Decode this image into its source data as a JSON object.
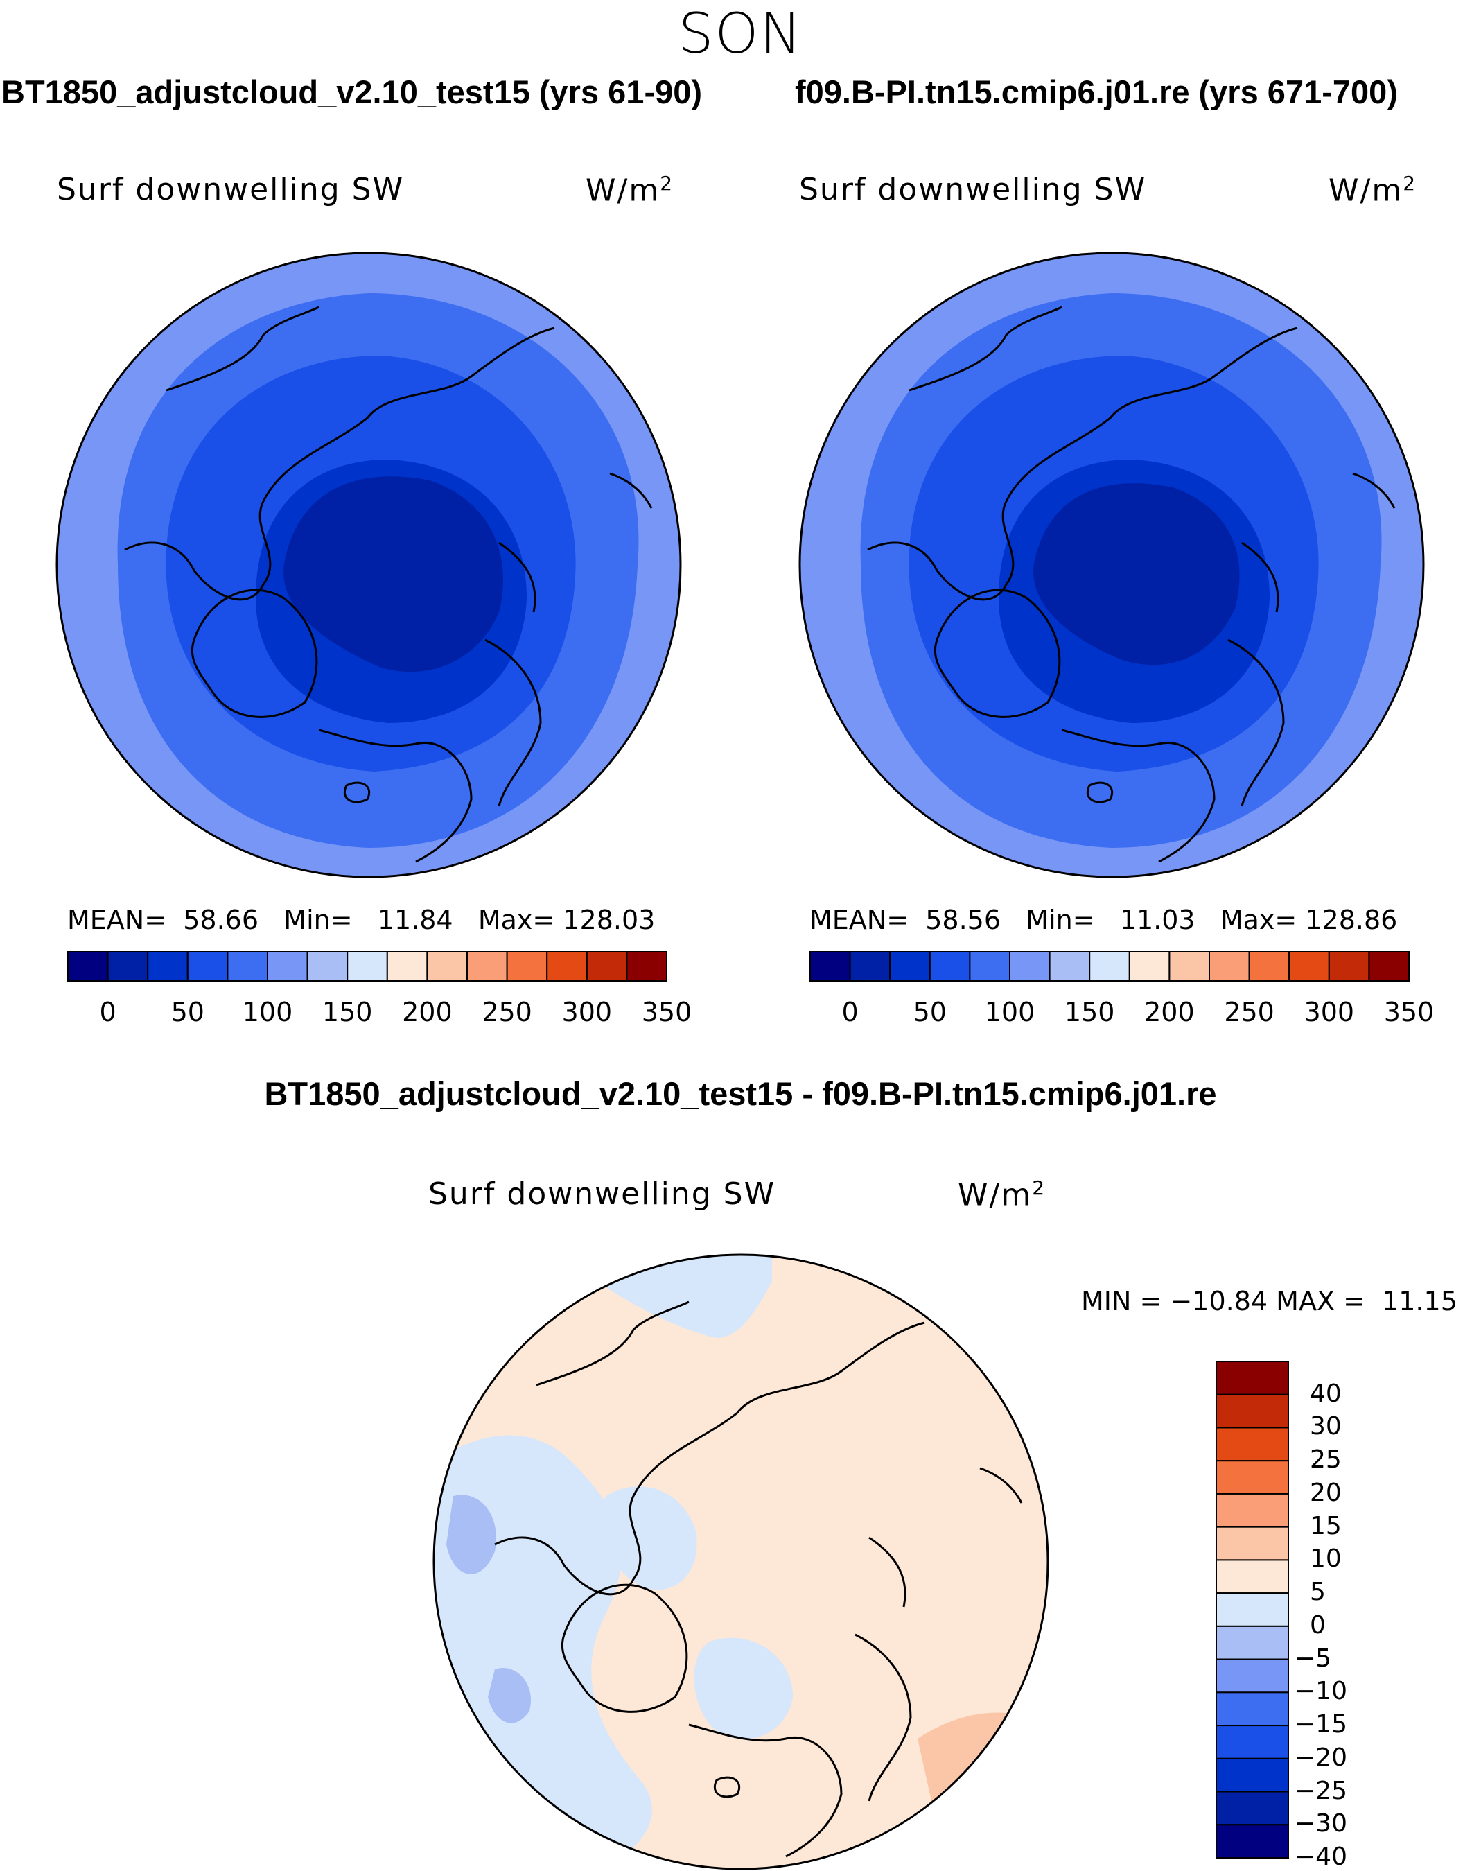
{
  "page_title": "SON",
  "colors": {
    "abs_scale": [
      "#000080",
      "#0021a6",
      "#0033c9",
      "#1a4fe8",
      "#3d6ef2",
      "#7896f5",
      "#a8bef5",
      "#d6e6fb",
      "#fde8d8",
      "#fbc6a8",
      "#f99e76",
      "#f3723e",
      "#e34a14",
      "#c32a07",
      "#8a0000"
    ],
    "diff_scale": [
      "#000080",
      "#0021a6",
      "#0033c9",
      "#1a4fe8",
      "#3d6ef2",
      "#7896f5",
      "#a8bef5",
      "#d6e6fb",
      "#fde8d8",
      "#fbc6a8",
      "#f99e76",
      "#f3723e",
      "#e34a14",
      "#c32a07",
      "#8a0000"
    ]
  },
  "panels": {
    "left": {
      "case_title": "BT1850_adjustcloud_v2.10_test15 (yrs 61-90)",
      "variable": "Surf downwelling SW",
      "units": "W/m",
      "units_exp": "2",
      "stats": {
        "mean_label": "MEAN=",
        "mean": "58.66",
        "min_label": "Min=",
        "min": "11.84",
        "max_label": "Max=",
        "max": "128.03"
      }
    },
    "right": {
      "case_title": "f09.B-PI.tn15.cmip6.j01.re (yrs 671-700)",
      "variable": "Surf downwelling SW",
      "units": "W/m",
      "units_exp": "2",
      "stats": {
        "mean_label": "MEAN=",
        "mean": "58.56",
        "min_label": "Min=",
        "min": "11.03",
        "max_label": "Max=",
        "max": "128.86"
      }
    },
    "diff": {
      "case_title": "BT1850_adjustcloud_v2.10_test15 - f09.B-PI.tn15.cmip6.j01.re",
      "variable": "Surf downwelling SW",
      "units": "W/m",
      "units_exp": "2",
      "min_label": "MIN =",
      "min": "−10.84",
      "max_label": "MAX =",
      "max": "11.15"
    }
  },
  "chart_data": [
    {
      "type": "heatmap",
      "title": "BT1850_adjustcloud_v2.10_test15 (yrs 61-90)",
      "subtitle": "Surf downwelling SW",
      "units": "W/m2",
      "projection": "north polar stereographic",
      "mean": 58.66,
      "min": 11.84,
      "max": 128.03,
      "field_levels": [
        25,
        50,
        75
      ],
      "colorbar_ticks": [
        0,
        50,
        100,
        150,
        200,
        250,
        300,
        350
      ],
      "colorbar_orientation": "horizontal"
    },
    {
      "type": "heatmap",
      "title": "f09.B-PI.tn15.cmip6.j01.re (yrs 671-700)",
      "subtitle": "Surf downwelling SW",
      "units": "W/m2",
      "projection": "north polar stereographic",
      "mean": 58.56,
      "min": 11.03,
      "max": 128.86,
      "field_levels": [
        25,
        50,
        75
      ],
      "colorbar_ticks": [
        0,
        50,
        100,
        150,
        200,
        250,
        300,
        350
      ],
      "colorbar_orientation": "horizontal"
    },
    {
      "type": "heatmap",
      "title": "BT1850_adjustcloud_v2.10_test15 - f09.B-PI.tn15.cmip6.j01.re",
      "subtitle": "Surf downwelling SW",
      "units": "W/m2",
      "projection": "north polar stereographic",
      "min": -10.84,
      "max": 11.15,
      "colorbar_ticks": [
        "40",
        "30",
        "25",
        "20",
        "15",
        "10",
        "5",
        "0",
        "−5",
        "−10",
        "−15",
        "−20",
        "−25",
        "−30",
        "−40"
      ],
      "colorbar_orientation": "vertical"
    }
  ]
}
